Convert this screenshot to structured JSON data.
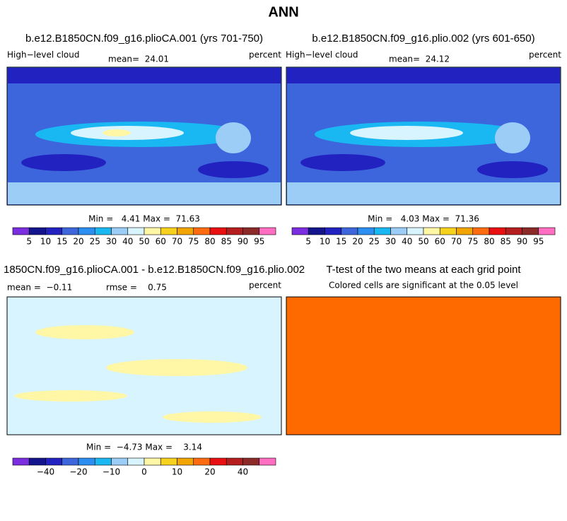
{
  "title": "ANN",
  "colorbar_colors": [
    "#7a2ee0",
    "#14148c",
    "#2222c0",
    "#3e66dc",
    "#2c8ef0",
    "#1ab8f2",
    "#9ccdf6",
    "#d8f4ff",
    "#fff6a6",
    "#f6d21e",
    "#f2a400",
    "#ff6c10",
    "#e81010",
    "#b41e1e",
    "#8c2a2a",
    "#ff6ec0"
  ],
  "panels": [
    {
      "title": "b.e12.B1850CN.f09_g16.plioCA.001 (yrs 701-750)",
      "variable": "High−level cloud",
      "mean": "mean=  24.01",
      "units": "percent",
      "stats": "Min =   4.41 Max =  71.63",
      "colorbar_labels": [
        "5",
        "10",
        "15",
        "20",
        "25",
        "30",
        "40",
        "50",
        "60",
        "70",
        "75",
        "80",
        "85",
        "90",
        "95"
      ]
    },
    {
      "title": "b.e12.B1850CN.f09_g16.plio.002 (yrs 601-650)",
      "variable": "High−level cloud",
      "mean": "mean=  24.12",
      "units": "percent",
      "stats": "Min =   4.03 Max =  71.36",
      "colorbar_labels": [
        "5",
        "10",
        "15",
        "20",
        "25",
        "30",
        "40",
        "50",
        "60",
        "70",
        "75",
        "80",
        "85",
        "90",
        "95"
      ]
    },
    {
      "title": "1850CN.f09_g16.plioCA.001 - b.e12.B1850CN.f09_g16.plio.002",
      "mean": "mean =  −0.11",
      "rmse": "rmse =    0.75",
      "units": "percent",
      "stats": "Min =  −4.73 Max =    3.14",
      "colorbar_labels": [
        "−40",
        "−20",
        "−10",
        "0",
        "10",
        "20",
        "40"
      ]
    },
    {
      "title": "T-test of the two means at each grid point",
      "subtitle": "Colored cells are significant at the 0.05 level"
    }
  ]
}
